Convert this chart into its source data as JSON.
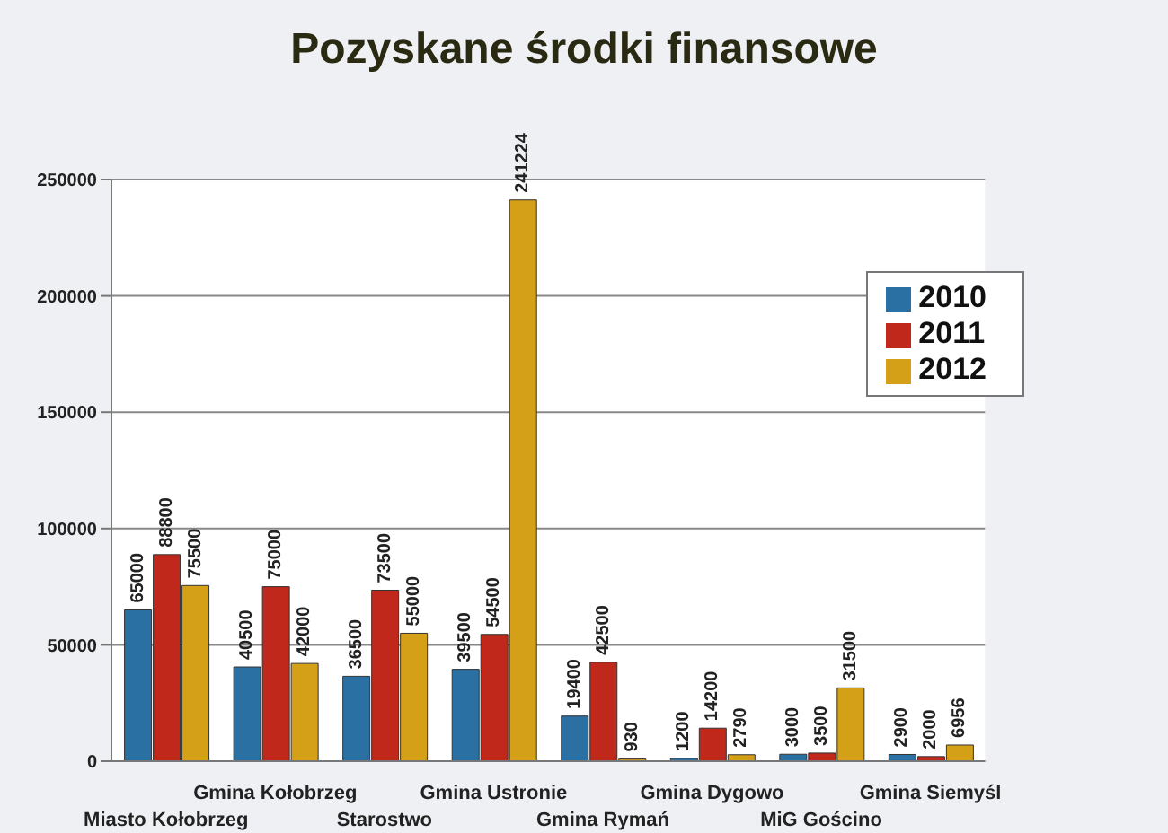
{
  "chart_data": {
    "type": "bar",
    "title": "Pozyskane środki finansowe",
    "categories": [
      "Miasto Kołobrzeg",
      "Gmina Kołobrzeg",
      "Starostwo",
      "Gmina Ustronie",
      "Gmina Rymań",
      "Gmina Dygowo",
      "MiG Gościno",
      "Gmina Siemyśl"
    ],
    "series": [
      {
        "name": "2010",
        "color": "#2a70a3",
        "values": [
          65000,
          40500,
          36500,
          39500,
          19400,
          1200,
          3000,
          2900
        ]
      },
      {
        "name": "2011",
        "color": "#c0281c",
        "values": [
          88800,
          75000,
          73500,
          54500,
          42500,
          14200,
          3500,
          2000
        ]
      },
      {
        "name": "2012",
        "color": "#d4a017",
        "values": [
          75500,
          42000,
          55000,
          241224,
          930,
          2790,
          31500,
          6956
        ]
      }
    ],
    "ylim": [
      0,
      250000
    ],
    "yticks": [
      0,
      50000,
      100000,
      150000,
      200000,
      250000
    ],
    "grid": "y",
    "legend": "top right",
    "data_labels": true
  }
}
